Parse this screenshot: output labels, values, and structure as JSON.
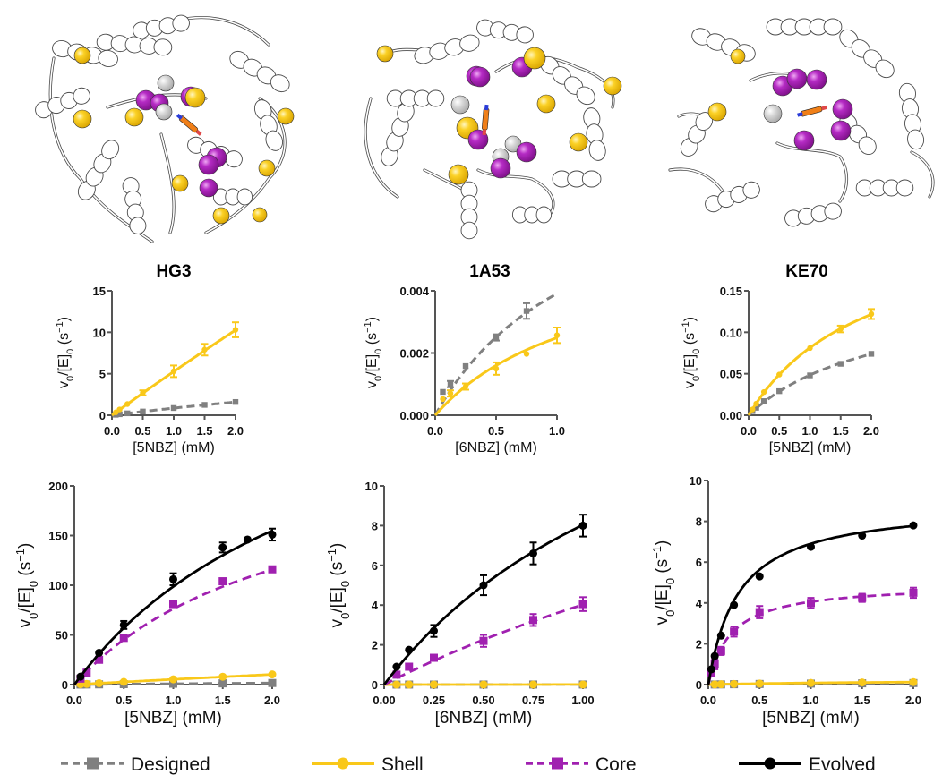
{
  "figure": {
    "structures": [
      {
        "name": "HG3",
        "description": "protein cartoon with shell (yellow), core (purple) and designed (gray) residue spheres and bound ligand"
      },
      {
        "name": "1A53",
        "description": "protein cartoon with shell (yellow), core (purple) and designed (gray) residue spheres and bound ligand"
      },
      {
        "name": "KE70",
        "description": "protein cartoon with shell (yellow), core (purple) and designed (gray) residue spheres and bound ligand"
      }
    ],
    "colors": {
      "designed": "#808080",
      "shell": "#F9C81A",
      "core": "#A020B0",
      "evolved": "#000000",
      "axis": "#555555"
    },
    "legend": {
      "position": "bottom",
      "items": [
        {
          "key": "designed",
          "label": "Designed",
          "line": "dashed",
          "marker": "square"
        },
        {
          "key": "shell",
          "label": "Shell",
          "line": "solid",
          "marker": "circle"
        },
        {
          "key": "core",
          "label": "Core",
          "line": "dashed",
          "marker": "square"
        },
        {
          "key": "evolved",
          "label": "Evolved",
          "line": "solid",
          "marker": "circle"
        }
      ]
    }
  },
  "chart_data": [
    {
      "id": "hg3-top",
      "type": "scatter",
      "title": "HG3",
      "xlabel": "[5NBZ] (mM)",
      "ylabel": "v0/[E]0 (s-1)",
      "xlim": [
        0,
        2.0
      ],
      "ylim": [
        0,
        15
      ],
      "xticks": [
        "0.0",
        "0.5",
        "1.0",
        "1.5",
        "2.0"
      ],
      "xtick_values": [
        0,
        0.5,
        1.0,
        1.5,
        2.0
      ],
      "yticks": [
        "0",
        "5",
        "10",
        "15"
      ],
      "ytick_values": [
        0,
        5,
        10,
        15
      ],
      "series": [
        {
          "name": "Designed",
          "key": "designed",
          "x": [
            0.0625,
            0.125,
            0.25,
            0.5,
            1.0,
            1.5,
            2.0
          ],
          "y": [
            0.06,
            0.12,
            0.23,
            0.45,
            0.87,
            1.25,
            1.6
          ],
          "err": [
            0,
            0,
            0,
            0,
            0,
            0,
            0
          ],
          "fit": {
            "type": "mm",
            "vmax": 11.0,
            "km": 11.8
          }
        },
        {
          "name": "Shell",
          "key": "shell",
          "x": [
            0.0625,
            0.125,
            0.25,
            0.5,
            1.0,
            1.5,
            2.0
          ],
          "y": [
            0.35,
            0.7,
            1.35,
            2.7,
            5.3,
            7.9,
            10.3
          ],
          "err": [
            0,
            0,
            0,
            0.3,
            0.7,
            0.7,
            0.9
          ],
          "fit": {
            "type": "mm",
            "vmax": 200,
            "km": 37
          }
        }
      ]
    },
    {
      "id": "1a53-top",
      "type": "scatter",
      "title": "1A53",
      "xlabel": "[6NBZ] (mM)",
      "ylabel": "v0/[E]0 (s-1)",
      "xlim": [
        0,
        1.0
      ],
      "ylim": [
        0,
        0.004
      ],
      "xticks": [
        "0.0",
        "0.5",
        "1.0"
      ],
      "xtick_values": [
        0,
        0.5,
        1.0
      ],
      "yticks": [
        "0.000",
        "0.002",
        "0.004"
      ],
      "ytick_values": [
        0,
        0.002,
        0.004
      ],
      "series": [
        {
          "name": "Designed",
          "key": "designed",
          "x": [
            0.0625,
            0.125,
            0.25,
            0.5,
            0.75
          ],
          "y": [
            0.00075,
            0.001,
            0.00158,
            0.0025,
            0.00335
          ],
          "err": [
            0,
            0.0001,
            0,
            0.0001,
            0.00025
          ],
          "fit": {
            "type": "mm",
            "vmax": 0.0088,
            "km": 1.25
          }
        },
        {
          "name": "Shell",
          "key": "shell",
          "x": [
            0.0625,
            0.125,
            0.25,
            0.5,
            0.75,
            1.0
          ],
          "y": [
            0.00052,
            0.0007,
            0.00092,
            0.0015,
            0.00197,
            0.00257
          ],
          "err": [
            0,
            0.0001,
            0.0001,
            0.0002,
            0,
            0.00025
          ],
          "fit": {
            "type": "mm",
            "vmax": 0.0056,
            "km": 1.25
          }
        }
      ]
    },
    {
      "id": "ke70-top",
      "type": "scatter",
      "title": "KE70",
      "xlabel": "[5NBZ] (mM)",
      "ylabel": "v0/[E]0 (s-1)",
      "xlim": [
        0,
        2.0
      ],
      "ylim": [
        0,
        0.15
      ],
      "xticks": [
        "0.0",
        "0.5",
        "1.0",
        "1.5",
        "2.0"
      ],
      "xtick_values": [
        0,
        0.5,
        1.0,
        1.5,
        2.0
      ],
      "yticks": [
        "0.00",
        "0.05",
        "0.10",
        "0.15"
      ],
      "ytick_values": [
        0,
        0.05,
        0.1,
        0.15
      ],
      "series": [
        {
          "name": "Designed",
          "key": "designed",
          "x": [
            0.0625,
            0.125,
            0.25,
            0.5,
            1.0,
            1.5,
            2.0
          ],
          "y": [
            0.005,
            0.009,
            0.017,
            0.029,
            0.048,
            0.062,
            0.074
          ],
          "err": [
            0,
            0,
            0,
            0,
            0,
            0,
            0
          ],
          "fit": {
            "type": "mm",
            "vmax": 0.155,
            "km": 2.2
          }
        },
        {
          "name": "Shell",
          "key": "shell",
          "x": [
            0.0625,
            0.125,
            0.25,
            0.5,
            1.0,
            1.5,
            2.0
          ],
          "y": [
            0.007,
            0.014,
            0.028,
            0.049,
            0.081,
            0.104,
            0.122
          ],
          "err": [
            0,
            0,
            0,
            0,
            0,
            0.004,
            0.006
          ],
          "fit": {
            "type": "mm",
            "vmax": 0.24,
            "km": 1.95
          }
        }
      ]
    },
    {
      "id": "hg3-bottom",
      "type": "scatter",
      "title": "",
      "xlabel": "[5NBZ] (mM)",
      "ylabel": "v0/[E]0 (s-1)",
      "xlim": [
        0,
        2.0
      ],
      "ylim": [
        0,
        200
      ],
      "xticks": [
        "0.0",
        "0.5",
        "1.0",
        "1.5",
        "2.0"
      ],
      "xtick_values": [
        0,
        0.5,
        1.0,
        1.5,
        2.0
      ],
      "yticks": [
        "0",
        "50",
        "100",
        "150",
        "200"
      ],
      "ytick_values": [
        0,
        50,
        100,
        150,
        200
      ],
      "series": [
        {
          "name": "Designed",
          "key": "designed",
          "x": [
            0.0625,
            0.125,
            0.25,
            0.5,
            1.0,
            1.5,
            2.0
          ],
          "y": [
            0.06,
            0.12,
            0.23,
            0.45,
            0.87,
            1.25,
            1.6
          ],
          "err": [
            0,
            0,
            0,
            0,
            0,
            0,
            0
          ],
          "fit": {
            "type": "mm",
            "vmax": 11.0,
            "km": 11.8
          }
        },
        {
          "name": "Shell",
          "key": "shell",
          "x": [
            0.0625,
            0.125,
            0.25,
            0.5,
            1.0,
            1.5,
            2.0
          ],
          "y": [
            0.35,
            0.7,
            1.35,
            2.7,
            5.3,
            7.9,
            10.3
          ],
          "err": [
            0,
            0,
            0,
            0,
            0,
            0,
            0
          ],
          "fit": {
            "type": "mm",
            "vmax": 200,
            "km": 37
          }
        },
        {
          "name": "Core",
          "key": "core",
          "x": [
            0.0625,
            0.125,
            0.25,
            0.5,
            1.0,
            1.5,
            2.0
          ],
          "y": [
            6,
            12,
            25,
            47,
            81,
            104,
            116
          ],
          "err": [
            0,
            0,
            0,
            0,
            0,
            0,
            0
          ],
          "fit": {
            "type": "mm",
            "vmax": 240,
            "km": 2.15
          }
        },
        {
          "name": "Evolved",
          "key": "evolved",
          "x": [
            0.0625,
            0.25,
            0.5,
            1.0,
            1.5,
            1.75,
            2.0
          ],
          "y": [
            8,
            32,
            60,
            106,
            138,
            146,
            151
          ],
          "err": [
            0,
            0,
            4,
            6,
            5,
            0,
            6
          ],
          "fit": {
            "type": "mm",
            "vmax": 360,
            "km": 2.65
          }
        }
      ]
    },
    {
      "id": "1a53-bottom",
      "type": "scatter",
      "title": "",
      "xlabel": "[6NBZ] (mM)",
      "ylabel": "v0/[E]0 (s-1)",
      "xlim": [
        0,
        1.0
      ],
      "ylim": [
        0,
        10
      ],
      "xticks": [
        "0.00",
        "0.25",
        "0.50",
        "0.75",
        "1.00"
      ],
      "xtick_values": [
        0,
        0.25,
        0.5,
        0.75,
        1.0
      ],
      "yticks": [
        "0",
        "2",
        "4",
        "6",
        "8",
        "10"
      ],
      "ytick_values": [
        0,
        2,
        4,
        6,
        8,
        10
      ],
      "series": [
        {
          "name": "Designed",
          "key": "designed",
          "x": [
            0.0625,
            0.125,
            0.25,
            0.5,
            0.75,
            1.0
          ],
          "y": [
            0.0008,
            0.001,
            0.0016,
            0.0025,
            0.0034,
            0.004
          ],
          "err": [
            0,
            0,
            0,
            0,
            0,
            0
          ],
          "fit": {
            "type": "mm",
            "vmax": 0.0088,
            "km": 1.25
          }
        },
        {
          "name": "Shell",
          "key": "shell",
          "x": [
            0.0625,
            0.125,
            0.25,
            0.5,
            0.75,
            1.0
          ],
          "y": [
            0.0005,
            0.0007,
            0.0009,
            0.0015,
            0.002,
            0.0026
          ],
          "err": [
            0,
            0,
            0,
            0,
            0,
            0
          ],
          "fit": {
            "type": "mm",
            "vmax": 0.0056,
            "km": 1.25
          }
        },
        {
          "name": "Core",
          "key": "core",
          "x": [
            0.0625,
            0.125,
            0.25,
            0.5,
            0.75,
            1.0
          ],
          "y": [
            0.5,
            0.9,
            1.35,
            2.2,
            3.25,
            4.05
          ],
          "err": [
            0,
            0.15,
            0,
            0.3,
            0.3,
            0.35
          ],
          "fit": {
            "type": "mm",
            "vmax": 18.5,
            "km": 3.6
          }
        },
        {
          "name": "Evolved",
          "key": "evolved",
          "x": [
            0.0625,
            0.125,
            0.25,
            0.5,
            0.75,
            1.0
          ],
          "y": [
            0.9,
            1.75,
            2.7,
            5.0,
            6.6,
            8.0
          ],
          "err": [
            0,
            0,
            0.3,
            0.5,
            0.55,
            0.55
          ],
          "fit": {
            "type": "mm",
            "vmax": 20.5,
            "km": 1.55
          }
        }
      ]
    },
    {
      "id": "ke70-bottom",
      "type": "scatter",
      "title": "",
      "xlabel": "[5NBZ] (mM)",
      "ylabel": "v0/[E]0 (s-1)",
      "xlim": [
        0,
        2.0
      ],
      "ylim": [
        0,
        10
      ],
      "xticks": [
        "0.0",
        "0.5",
        "1.0",
        "1.5",
        "2.0"
      ],
      "xtick_values": [
        0,
        0.5,
        1.0,
        1.5,
        2.0
      ],
      "yticks": [
        "0",
        "2",
        "4",
        "6",
        "8",
        "10"
      ],
      "ytick_values": [
        0,
        2,
        4,
        6,
        8,
        10
      ],
      "series": [
        {
          "name": "Designed",
          "key": "designed",
          "x": [
            0.0625,
            0.125,
            0.25,
            0.5,
            1.0,
            1.5,
            2.0
          ],
          "y": [
            0.005,
            0.009,
            0.017,
            0.029,
            0.048,
            0.062,
            0.074
          ],
          "err": [
            0,
            0,
            0,
            0,
            0,
            0,
            0
          ],
          "fit": {
            "type": "mm",
            "vmax": 0.155,
            "km": 2.2
          }
        },
        {
          "name": "Shell",
          "key": "shell",
          "x": [
            0.0625,
            0.125,
            0.25,
            0.5,
            1.0,
            1.5,
            2.0
          ],
          "y": [
            0.007,
            0.014,
            0.028,
            0.049,
            0.081,
            0.104,
            0.122
          ],
          "err": [
            0,
            0,
            0,
            0,
            0,
            0,
            0
          ],
          "fit": {
            "type": "mm",
            "vmax": 0.24,
            "km": 1.95
          }
        },
        {
          "name": "Core",
          "key": "core",
          "x": [
            0.03,
            0.0625,
            0.125,
            0.25,
            0.5,
            1.0,
            1.5,
            2.0
          ],
          "y": [
            0.6,
            1.0,
            1.65,
            2.6,
            3.55,
            4.0,
            4.25,
            4.5
          ],
          "err": [
            0.2,
            0.25,
            0.2,
            0.25,
            0.3,
            0.25,
            0.2,
            0.25
          ],
          "fit": {
            "type": "mm",
            "vmax": 4.95,
            "km": 0.22
          }
        },
        {
          "name": "Evolved",
          "key": "evolved",
          "x": [
            0.03,
            0.0625,
            0.125,
            0.25,
            0.5,
            1.0,
            1.5,
            2.0
          ],
          "y": [
            0.75,
            1.4,
            2.4,
            3.9,
            5.3,
            6.75,
            7.3,
            7.8
          ],
          "err": [
            0,
            0,
            0,
            0,
            0,
            0,
            0,
            0
          ],
          "fit": {
            "type": "mm",
            "vmax": 8.9,
            "km": 0.29
          }
        }
      ]
    }
  ]
}
